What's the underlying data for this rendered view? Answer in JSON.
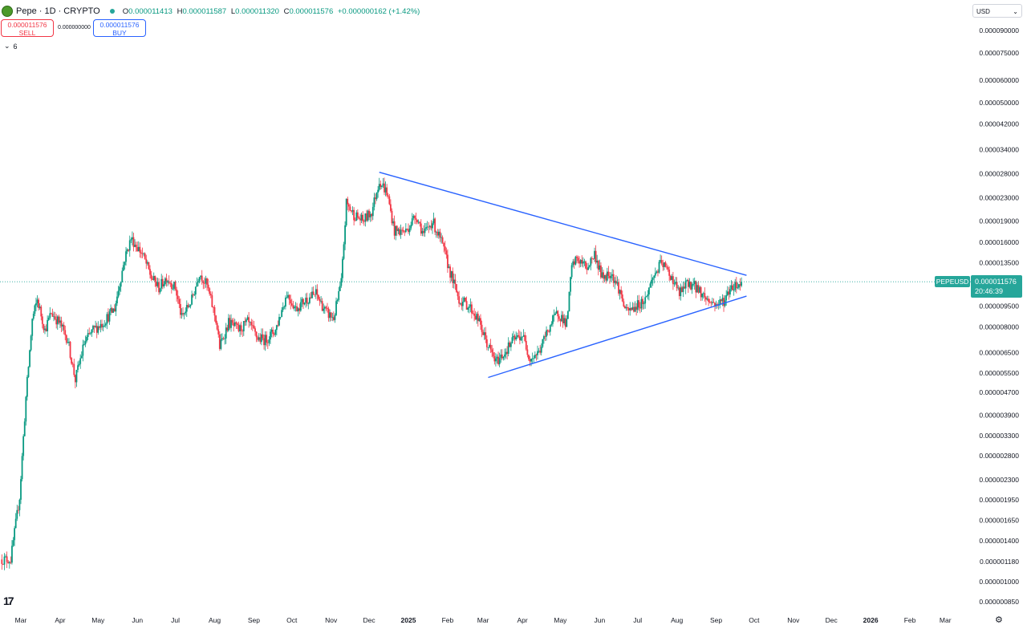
{
  "header": {
    "symbol": "Pepe · 1D · CRYPTO",
    "o_label": "O",
    "o": "0.000011413",
    "h_label": "H",
    "h": "0.000011587",
    "l_label": "L",
    "l": "0.000011320",
    "c_label": "C",
    "c": "0.000011576",
    "change": "+0.000000162 (+1.42%)"
  },
  "trade": {
    "sell_price": "0.000011576",
    "sell_label": "SELL",
    "spread": "0.000000000",
    "buy_price": "0.000011576",
    "buy_label": "BUY"
  },
  "indicators_toggle": "6",
  "currency": "USD",
  "last_price": {
    "symbol": "PEPEUSD",
    "price": "0.000011576",
    "countdown": "20:46:39"
  },
  "colors": {
    "up": "#089981",
    "down": "#f23645",
    "trendline": "#2962ff",
    "price_tag": "#26a69a"
  },
  "chart_data": {
    "type": "candlestick",
    "y_scale": "log",
    "grid": false,
    "ylim": [
      8.5e-07,
      9e-05
    ],
    "y_ticks": [
      "0.000090000",
      "0.000075000",
      "0.000060000",
      "0.000050000",
      "0.000042000",
      "0.000034000",
      "0.000028000",
      "0.000023000",
      "0.000019000",
      "0.000016000",
      "0.000013500",
      "0.000011576",
      "0.000009500",
      "0.000008000",
      "0.000006500",
      "0.000005500",
      "0.000004700",
      "0.000003900",
      "0.000003300",
      "0.000002800",
      "0.000002300",
      "0.000001950",
      "0.000001650",
      "0.000001400",
      "0.000001180",
      "0.000001000",
      "0.000000850"
    ],
    "x_ticks": [
      {
        "label": "Mar",
        "date": "2024-03-01"
      },
      {
        "label": "Apr",
        "date": "2024-04-01"
      },
      {
        "label": "May",
        "date": "2024-05-01"
      },
      {
        "label": "Jun",
        "date": "2024-06-01"
      },
      {
        "label": "Jul",
        "date": "2024-07-01"
      },
      {
        "label": "Aug",
        "date": "2024-08-01"
      },
      {
        "label": "Sep",
        "date": "2024-09-01"
      },
      {
        "label": "Oct",
        "date": "2024-10-01"
      },
      {
        "label": "Nov",
        "date": "2024-11-01"
      },
      {
        "label": "Dec",
        "date": "2024-12-01"
      },
      {
        "label": "2025",
        "date": "2025-01-01",
        "bold": true
      },
      {
        "label": "Feb",
        "date": "2025-02-01"
      },
      {
        "label": "Mar",
        "date": "2025-03-01"
      },
      {
        "label": "Apr",
        "date": "2025-04-01"
      },
      {
        "label": "May",
        "date": "2025-05-01"
      },
      {
        "label": "Jun",
        "date": "2025-06-01"
      },
      {
        "label": "Jul",
        "date": "2025-07-01"
      },
      {
        "label": "Aug",
        "date": "2025-08-01"
      },
      {
        "label": "Sep",
        "date": "2025-09-01"
      },
      {
        "label": "Oct",
        "date": "2025-10-01"
      },
      {
        "label": "Nov",
        "date": "2025-11-01"
      },
      {
        "label": "Dec",
        "date": "2025-12-01"
      },
      {
        "label": "2026",
        "date": "2026-01-01",
        "bold": true
      },
      {
        "label": "Feb",
        "date": "2026-02-01"
      },
      {
        "label": "Mar",
        "date": "2026-03-01"
      }
    ],
    "close_path": [
      [
        "2024-02-15",
        1.2e-06
      ],
      [
        "2024-02-22",
        1.2e-06
      ],
      [
        "2024-02-29",
        2e-06
      ],
      [
        "2024-03-05",
        4.5e-06
      ],
      [
        "2024-03-10",
        8.5e-06
      ],
      [
        "2024-03-14",
        1e-05
      ],
      [
        "2024-03-20",
        7.8e-06
      ],
      [
        "2024-03-25",
        9e-06
      ],
      [
        "2024-04-01",
        8.2e-06
      ],
      [
        "2024-04-07",
        7.2e-06
      ],
      [
        "2024-04-13",
        5.2e-06
      ],
      [
        "2024-04-20",
        7e-06
      ],
      [
        "2024-04-27",
        7.8e-06
      ],
      [
        "2024-05-05",
        8.3e-06
      ],
      [
        "2024-05-14",
        9.3e-06
      ],
      [
        "2024-05-22",
        1.4e-05
      ],
      [
        "2024-05-27",
        1.65e-05
      ],
      [
        "2024-06-05",
        1.45e-05
      ],
      [
        "2024-06-12",
        1.2e-05
      ],
      [
        "2024-06-18",
        1.1e-05
      ],
      [
        "2024-06-24",
        1.2e-05
      ],
      [
        "2024-07-01",
        1.1e-05
      ],
      [
        "2024-07-06",
        8.6e-06
      ],
      [
        "2024-07-14",
        1e-05
      ],
      [
        "2024-07-20",
        1.25e-05
      ],
      [
        "2024-07-26",
        1.12e-05
      ],
      [
        "2024-08-02",
        8.5e-06
      ],
      [
        "2024-08-05",
        6.8e-06
      ],
      [
        "2024-08-12",
        8.3e-06
      ],
      [
        "2024-08-20",
        7.8e-06
      ],
      [
        "2024-08-27",
        8.3e-06
      ],
      [
        "2024-09-04",
        7.3e-06
      ],
      [
        "2024-09-10",
        7.2e-06
      ],
      [
        "2024-09-18",
        7.8e-06
      ],
      [
        "2024-09-27",
        1.05e-05
      ],
      [
        "2024-10-04",
        9.3e-06
      ],
      [
        "2024-10-12",
        1e-05
      ],
      [
        "2024-10-20",
        1.05e-05
      ],
      [
        "2024-10-28",
        9e-06
      ],
      [
        "2024-11-03",
        8.6e-06
      ],
      [
        "2024-11-09",
        1.15e-05
      ],
      [
        "2024-11-13",
        2.2e-05
      ],
      [
        "2024-11-19",
        2e-05
      ],
      [
        "2024-11-26",
        1.9e-05
      ],
      [
        "2024-12-03",
        2.05e-05
      ],
      [
        "2024-12-09",
        2.65e-05
      ],
      [
        "2024-12-15",
        2.4e-05
      ],
      [
        "2024-12-21",
        1.75e-05
      ],
      [
        "2024-12-30",
        1.75e-05
      ],
      [
        "2025-01-07",
        2e-05
      ],
      [
        "2025-01-13",
        1.7e-05
      ],
      [
        "2025-01-20",
        1.9e-05
      ],
      [
        "2025-01-27",
        1.6e-05
      ],
      [
        "2025-02-03",
        1.25e-05
      ],
      [
        "2025-02-10",
        1e-05
      ],
      [
        "2025-02-18",
        9.5e-06
      ],
      [
        "2025-02-25",
        8.5e-06
      ],
      [
        "2025-03-04",
        7e-06
      ],
      [
        "2025-03-11",
        6e-06
      ],
      [
        "2025-03-18",
        6.5e-06
      ],
      [
        "2025-03-25",
        7.2e-06
      ],
      [
        "2025-04-01",
        7.5e-06
      ],
      [
        "2025-04-07",
        6.2e-06
      ],
      [
        "2025-04-14",
        6.5e-06
      ],
      [
        "2025-04-22",
        8e-06
      ],
      [
        "2025-04-29",
        9e-06
      ],
      [
        "2025-05-06",
        8.2e-06
      ],
      [
        "2025-05-10",
        1.3e-05
      ],
      [
        "2025-05-14",
        1.4e-05
      ],
      [
        "2025-05-22",
        1.3e-05
      ],
      [
        "2025-05-28",
        1.45e-05
      ],
      [
        "2025-06-03",
        1.2e-05
      ],
      [
        "2025-06-10",
        1.25e-05
      ],
      [
        "2025-06-16",
        1.1e-05
      ],
      [
        "2025-06-22",
        9e-06
      ],
      [
        "2025-06-30",
        9.5e-06
      ],
      [
        "2025-07-07",
        1e-05
      ],
      [
        "2025-07-13",
        1.2e-05
      ],
      [
        "2025-07-20",
        1.35e-05
      ],
      [
        "2025-07-28",
        1.2e-05
      ],
      [
        "2025-08-03",
        1.05e-05
      ],
      [
        "2025-08-10",
        1.15e-05
      ],
      [
        "2025-08-17",
        1.1e-05
      ],
      [
        "2025-08-25",
        1e-05
      ],
      [
        "2025-09-01",
        9.6e-06
      ],
      [
        "2025-09-08",
        1e-05
      ],
      [
        "2025-09-13",
        1.12e-05
      ],
      [
        "2025-09-19",
        1.13e-05
      ],
      [
        "2025-09-21",
        1.1576e-05
      ]
    ],
    "trendlines": [
      {
        "name": "upper",
        "from": [
          "2024-12-09",
          2.83e-05
        ],
        "to": [
          "2025-09-25",
          1.22e-05
        ]
      },
      {
        "name": "lower",
        "from": [
          "2025-03-05",
          5.3e-06
        ],
        "to": [
          "2025-09-25",
          1.03e-05
        ]
      }
    ],
    "last": {
      "date": "2025-09-21",
      "close": 1.1576e-05
    }
  }
}
